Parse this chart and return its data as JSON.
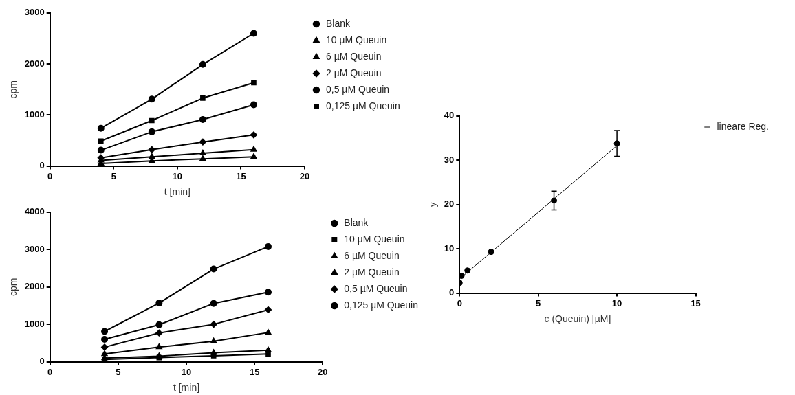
{
  "chart_data": [
    {
      "type": "line",
      "xlabel": "t [min]",
      "ylabel": "cpm",
      "x": [
        4,
        8,
        12,
        16
      ],
      "xlim": [
        0,
        20
      ],
      "xticks": [
        0,
        5,
        10,
        15,
        20
      ],
      "ylim": [
        0,
        3000
      ],
      "yticks": [
        0,
        1000,
        2000,
        3000
      ],
      "grid": false,
      "legend": "right",
      "line_style": "solid",
      "series": [
        {
          "name": "Blank",
          "color": "#000000",
          "marker": "circle",
          "values": [
            740,
            1310,
            1990,
            2600
          ]
        },
        {
          "name": "10 µM Queuin",
          "color": "#000000",
          "marker": "triangle",
          "values": [
            50,
            100,
            140,
            180
          ]
        },
        {
          "name": "6 µM Queuin",
          "color": "#000000",
          "marker": "triangle",
          "values": [
            110,
            180,
            250,
            320
          ]
        },
        {
          "name": "2 µM Queuin",
          "color": "#000000",
          "marker": "diamond",
          "values": [
            160,
            320,
            470,
            610
          ]
        },
        {
          "name": "0,5 µM Queuin",
          "color": "#000000",
          "marker": "circle",
          "values": [
            310,
            670,
            910,
            1200
          ]
        },
        {
          "name": "0,125 µM Queuin",
          "color": "#000000",
          "marker": "square",
          "values": [
            490,
            890,
            1330,
            1630
          ]
        }
      ]
    },
    {
      "type": "line",
      "xlabel": "t [min]",
      "ylabel": "cpm",
      "x": [
        4,
        8,
        12,
        16
      ],
      "xlim": [
        0,
        20
      ],
      "xticks": [
        0,
        5,
        10,
        15,
        20
      ],
      "ylim": [
        0,
        4000
      ],
      "yticks": [
        0,
        1000,
        2000,
        3000,
        4000
      ],
      "grid": false,
      "legend": "right",
      "line_style": "solid",
      "series": [
        {
          "name": "Blank",
          "color": "#000000",
          "marker": "circle",
          "values": [
            810,
            1570,
            2480,
            3080
          ]
        },
        {
          "name": "10 µM Queuin",
          "color": "#000000",
          "marker": "square",
          "values": [
            60,
            110,
            160,
            210
          ]
        },
        {
          "name": "6 µM Queuin",
          "color": "#000000",
          "marker": "triangle",
          "values": [
            100,
            150,
            240,
            310
          ]
        },
        {
          "name": "2 µM Queuin",
          "color": "#000000",
          "marker": "triangle",
          "values": [
            210,
            390,
            550,
            780
          ]
        },
        {
          "name": "0,5 µM Queuin",
          "color": "#000000",
          "marker": "diamond",
          "values": [
            390,
            770,
            1000,
            1390
          ]
        },
        {
          "name": "0,125 µM Queuin",
          "color": "#000000",
          "marker": "circle",
          "values": [
            600,
            990,
            1560,
            1860
          ]
        }
      ]
    },
    {
      "type": "scatter",
      "xlabel": "c (Queuin) [µM]",
      "ylabel": "y",
      "xlim": [
        0,
        15
      ],
      "xticks": [
        0,
        5,
        10,
        15
      ],
      "ylim": [
        0,
        40
      ],
      "yticks": [
        0,
        10,
        20,
        30,
        40
      ],
      "grid": false,
      "legend": "right",
      "series": [
        {
          "color": "#000000",
          "marker": "circle",
          "x": [
            0,
            0.125,
            0.5,
            2,
            6,
            10
          ],
          "values": [
            2.3,
            3.9,
            5.1,
            9.3,
            20.9,
            33.8
          ],
          "errors": [
            null,
            null,
            null,
            null,
            2.1,
            2.9
          ]
        },
        {
          "name": "lineare Reg.",
          "type": "line",
          "color": "#000000",
          "marker": "none",
          "line_style": "solid",
          "x": [
            0,
            10
          ],
          "values": [
            3.2,
            33.3
          ]
        }
      ]
    }
  ]
}
